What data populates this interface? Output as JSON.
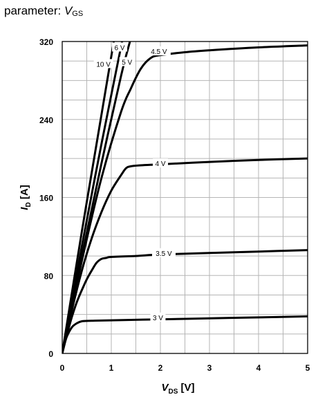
{
  "caption": {
    "prefix": "parameter: ",
    "symbol": "V",
    "subscript": "GS"
  },
  "chart_data": {
    "type": "line",
    "xlabel": {
      "symbol": "V",
      "subscript": "DS",
      "unit": " [V]"
    },
    "ylabel": {
      "symbol": "I",
      "subscript": "D",
      "unit": " [A]"
    },
    "xlim": [
      0,
      5
    ],
    "ylim": [
      0,
      320
    ],
    "xticks": [
      0,
      1,
      2,
      3,
      4,
      5
    ],
    "yticks": [
      0,
      80,
      160,
      240,
      320
    ],
    "xgrid": [
      0.5,
      1,
      1.5,
      2,
      2.5,
      3,
      3.5,
      4,
      4.5,
      5
    ],
    "ygrid": [
      20,
      40,
      60,
      80,
      100,
      120,
      140,
      160,
      180,
      200,
      220,
      240,
      260,
      280,
      300,
      320
    ],
    "grid": true,
    "series": [
      {
        "name": "3 V",
        "label_at": [
          1.95,
          37
        ],
        "x": [
          0,
          0.05,
          0.1,
          0.2,
          0.3,
          0.4,
          0.6,
          1,
          2,
          3,
          4,
          5
        ],
        "y": [
          0,
          10,
          18,
          27,
          31,
          33,
          33.5,
          34,
          35,
          36,
          37,
          38
        ]
      },
      {
        "name": "3.5 V",
        "label_at": [
          2.07,
          103
        ],
        "x": [
          0,
          0.1,
          0.2,
          0.3,
          0.4,
          0.5,
          0.6,
          0.7,
          0.8,
          0.9,
          1,
          1.5,
          2,
          3,
          4,
          5
        ],
        "y": [
          0,
          20,
          38,
          53,
          65,
          76,
          85,
          93,
          97,
          98,
          99,
          100,
          101.5,
          103,
          104.5,
          106
        ]
      },
      {
        "name": "4 V",
        "label_at": [
          2,
          195
        ],
        "x": [
          0,
          0.2,
          0.4,
          0.6,
          0.8,
          1,
          1.2,
          1.3,
          1.4,
          1.6,
          2,
          3,
          4,
          5
        ],
        "y": [
          0,
          45,
          85,
          118,
          145,
          167,
          183,
          190,
          192,
          193,
          194,
          196.5,
          198.5,
          200
        ]
      },
      {
        "name": "4.5 V",
        "label_at": [
          1.97,
          310
        ],
        "x": [
          0,
          0.4,
          0.8,
          1.2,
          1.4,
          1.6,
          1.8,
          2,
          2.5,
          3,
          4,
          5
        ],
        "y": [
          0,
          95,
          180,
          248,
          272,
          292,
          303,
          306,
          309,
          311,
          314,
          316
        ]
      },
      {
        "name": "5 V",
        "label_at": [
          1.32,
          299
        ],
        "x": [
          0,
          0.4,
          0.8,
          1.2,
          1.38
        ],
        "y": [
          0,
          100,
          195,
          285,
          320
        ]
      },
      {
        "name": "6 V",
        "label_at": [
          1.17,
          314
        ],
        "x": [
          0,
          0.4,
          0.8,
          1.22
        ],
        "y": [
          0,
          110,
          215,
          320
        ]
      },
      {
        "name": "10 V",
        "label_at": [
          0.84,
          297
        ],
        "x": [
          0,
          0.4,
          0.8,
          1.05
        ],
        "y": [
          0,
          125,
          245,
          320
        ]
      }
    ]
  }
}
